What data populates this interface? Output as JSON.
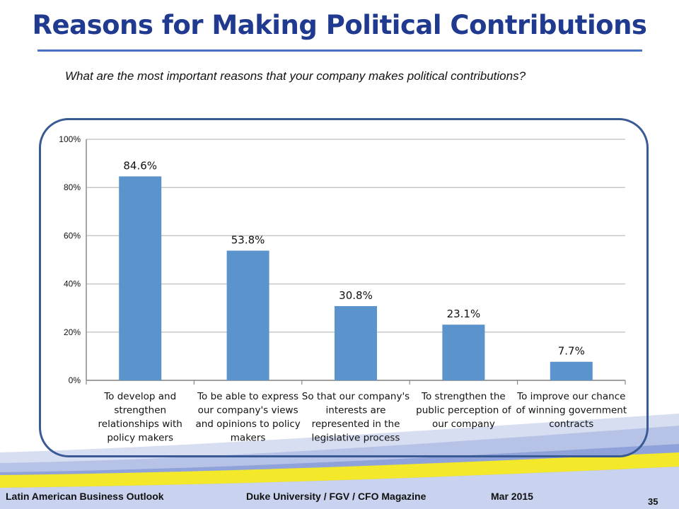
{
  "slide": {
    "title": "Reasons for Making Political Contributions",
    "question": "What are the most important reasons that your company makes political contributions?"
  },
  "footer": {
    "left": "Latin American Business Outlook",
    "center": "Duke University / FGV / CFO Magazine",
    "date": "Mar 2015",
    "page_number": "35"
  },
  "colors": {
    "title": "#1f3a8f",
    "bar": "#5b94cd",
    "frame": "#3a5a95",
    "band_yellow": "#f3e92a",
    "band_blue": "#b7c3e6"
  },
  "chart_data": {
    "type": "bar",
    "categories": [
      [
        "To develop and",
        "strengthen",
        "relationships with",
        "policy makers"
      ],
      [
        "To be able to express",
        "our company's views",
        "and opinions to policy",
        "makers"
      ],
      [
        "So that our company's",
        "interests are",
        "represented in the",
        "legislative process"
      ],
      [
        "To strengthen the",
        "public perception of",
        "our company"
      ],
      [
        "To improve our chance",
        "of winning government",
        "contracts"
      ]
    ],
    "values": [
      84.6,
      53.8,
      30.8,
      23.1,
      7.7
    ],
    "data_labels": [
      "84.6%",
      "53.8%",
      "30.8%",
      "23.1%",
      "7.7%"
    ],
    "yticks": [
      "0%",
      "20%",
      "40%",
      "60%",
      "80%",
      "100%"
    ],
    "ylim": [
      0,
      100
    ],
    "grid": true,
    "legend": "none"
  }
}
